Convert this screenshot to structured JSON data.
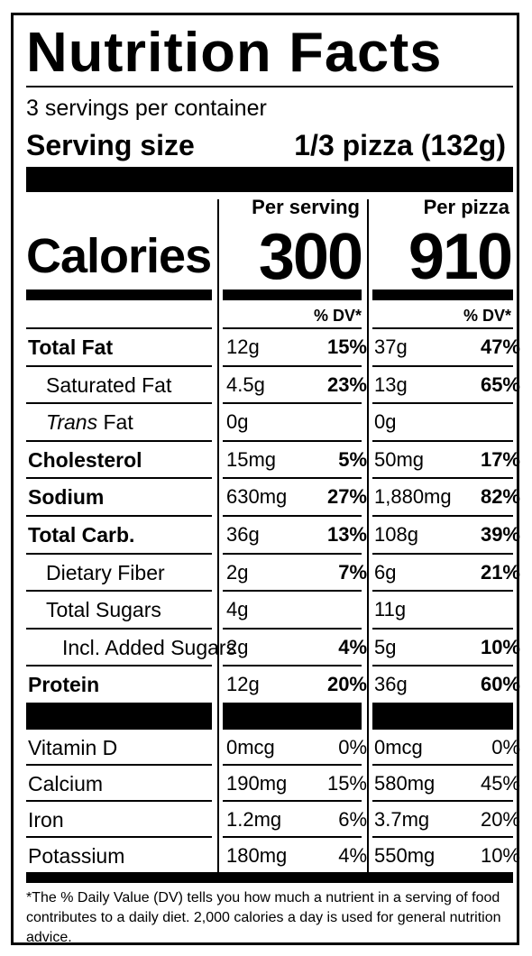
{
  "header": {
    "title": "Nutrition Facts",
    "servings": "3 servings per container",
    "serving_size_label": "Serving size",
    "serving_size_value": "1/3 pizza (132g)"
  },
  "columns": {
    "per_serving_label": "Per serving",
    "per_pizza_label": "Per pizza",
    "calories_label": "Calories",
    "calories_serving": "300",
    "calories_pizza": "910",
    "dv_label": "% DV*"
  },
  "nutrients": [
    {
      "name": "Total Fat",
      "bold": true,
      "indent": 0,
      "serving_amt": "12g",
      "serving_dv": "15%",
      "pizza_amt": "37g",
      "pizza_dv": "47%"
    },
    {
      "name": "Saturated Fat",
      "bold": false,
      "indent": 1,
      "serving_amt": "4.5g",
      "serving_dv": "23%",
      "pizza_amt": "13g",
      "pizza_dv": "65%"
    },
    {
      "name": "Trans Fat",
      "bold": false,
      "indent": 1,
      "italic_first": true,
      "serving_amt": "0g",
      "serving_dv": "",
      "pizza_amt": "0g",
      "pizza_dv": ""
    },
    {
      "name": "Cholesterol",
      "bold": true,
      "indent": 0,
      "serving_amt": "15mg",
      "serving_dv": "5%",
      "pizza_amt": "50mg",
      "pizza_dv": "17%"
    },
    {
      "name": "Sodium",
      "bold": true,
      "indent": 0,
      "serving_amt": "630mg",
      "serving_dv": "27%",
      "pizza_amt": "1,880mg",
      "pizza_dv": "82%"
    },
    {
      "name": "Total Carb.",
      "bold": true,
      "indent": 0,
      "serving_amt": "36g",
      "serving_dv": "13%",
      "pizza_amt": "108g",
      "pizza_dv": "39%"
    },
    {
      "name": "Dietary Fiber",
      "bold": false,
      "indent": 1,
      "serving_amt": "2g",
      "serving_dv": "7%",
      "pizza_amt": "6g",
      "pizza_dv": "21%"
    },
    {
      "name": "Total Sugars",
      "bold": false,
      "indent": 1,
      "serving_amt": "4g",
      "serving_dv": "",
      "pizza_amt": "11g",
      "pizza_dv": ""
    },
    {
      "name": "Incl. Added Sugars",
      "bold": false,
      "indent": 2,
      "serving_amt": "2g",
      "serving_dv": "4%",
      "pizza_amt": "5g",
      "pizza_dv": "10%"
    },
    {
      "name": "Protein",
      "bold": true,
      "indent": 0,
      "serving_amt": "12g",
      "serving_dv": "20%",
      "pizza_amt": "36g",
      "pizza_dv": "60%"
    }
  ],
  "vitamins": [
    {
      "name": "Vitamin D",
      "serving_amt": "0mcg",
      "serving_dv": "0%",
      "pizza_amt": "0mcg",
      "pizza_dv": "0%"
    },
    {
      "name": "Calcium",
      "serving_amt": "190mg",
      "serving_dv": "15%",
      "pizza_amt": "580mg",
      "pizza_dv": "45%"
    },
    {
      "name": "Iron",
      "serving_amt": "1.2mg",
      "serving_dv": "6%",
      "pizza_amt": "3.7mg",
      "pizza_dv": "20%"
    },
    {
      "name": "Potassium",
      "serving_amt": "180mg",
      "serving_dv": "4%",
      "pizza_amt": "550mg",
      "pizza_dv": "10%"
    }
  ],
  "footnote": "*The % Daily Value (DV) tells you how much a nutrient in a serving of food contributes to a daily diet. 2,000 calories a day is used for general nutrition advice."
}
